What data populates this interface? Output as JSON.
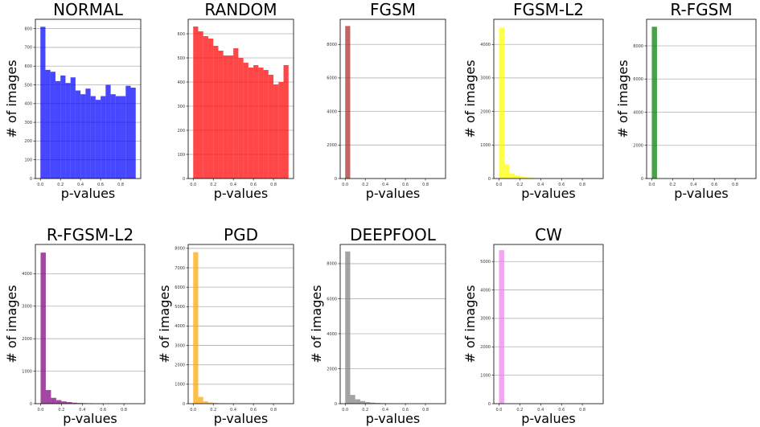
{
  "chart_data": [
    {
      "type": "bar",
      "title": "NORMAL",
      "xlabel": "p-values",
      "ylabel": "# of images",
      "color": "#0000ff",
      "bin_edges_start": 0.0,
      "bin_width": 0.05,
      "values": [
        810,
        580,
        570,
        520,
        550,
        510,
        540,
        470,
        450,
        480,
        440,
        420,
        440,
        500,
        450,
        440,
        440,
        495,
        485
      ],
      "xlim": [
        -0.05,
        1.0
      ],
      "ylim": [
        0,
        850
      ],
      "xticks": [
        0.0,
        0.2,
        0.4,
        0.6,
        0.8
      ],
      "xtick_labels": [
        "0.0",
        "0.2",
        "0.4",
        "0.6",
        "0.8"
      ],
      "yticks": [
        0,
        100,
        200,
        300,
        400,
        500,
        600,
        700,
        800
      ],
      "ytick_labels": [
        "0",
        "100",
        "200",
        "300",
        "400",
        "500",
        "600",
        "700",
        "800"
      ],
      "grid": true
    },
    {
      "type": "bar",
      "title": "RANDOM",
      "xlabel": "p-values",
      "ylabel": "",
      "color": "#ff0000",
      "bin_edges_start": 0.0,
      "bin_width": 0.05,
      "values": [
        630,
        610,
        590,
        580,
        550,
        530,
        510,
        510,
        540,
        500,
        480,
        460,
        470,
        460,
        450,
        430,
        390,
        400,
        470
      ],
      "xlim": [
        -0.05,
        1.0
      ],
      "ylim": [
        0,
        660
      ],
      "xticks": [
        0.0,
        0.2,
        0.4,
        0.6,
        0.8
      ],
      "xtick_labels": [
        "0.0",
        "0.2",
        "0.4",
        "0.6",
        "0.8"
      ],
      "yticks": [
        0,
        100,
        200,
        300,
        400,
        500,
        600
      ],
      "ytick_labels": [
        "0",
        "100",
        "200",
        "300",
        "400",
        "500",
        "600"
      ],
      "grid": true
    },
    {
      "type": "bar",
      "title": "FGSM",
      "xlabel": "p-values",
      "ylabel": "",
      "color": "#aa2a2a",
      "bin_edges_start": 0.0,
      "bin_width": 0.05,
      "values": [
        9100
      ],
      "xlim": [
        -0.05,
        1.0
      ],
      "ylim": [
        0,
        9500
      ],
      "xticks": [
        0.0,
        0.2,
        0.4,
        0.6,
        0.8
      ],
      "xtick_labels": [
        "0.0",
        "0.2",
        "0.4",
        "0.6",
        "0.8"
      ],
      "yticks": [
        0,
        2000,
        4000,
        6000,
        8000
      ],
      "ytick_labels": [
        "0",
        "2000",
        "4000",
        "6000",
        "8000"
      ],
      "grid": true
    },
    {
      "type": "bar",
      "title": "FGSM-L2",
      "xlabel": "p-values",
      "ylabel": "# of images",
      "color": "#ffff00",
      "bin_edges_start": 0.0,
      "bin_width": 0.05,
      "values": [
        4500,
        420,
        150,
        90,
        60,
        40,
        30,
        20,
        15,
        10
      ],
      "xlim": [
        -0.05,
        1.0
      ],
      "ylim": [
        0,
        4750
      ],
      "xticks": [
        0.0,
        0.2,
        0.4,
        0.6,
        0.8
      ],
      "xtick_labels": [
        "0.0",
        "0.2",
        "0.4",
        "0.6",
        "0.8"
      ],
      "yticks": [
        0,
        1000,
        2000,
        3000,
        4000
      ],
      "ytick_labels": [
        "0",
        "1000",
        "2000",
        "3000",
        "4000"
      ],
      "grid": true
    },
    {
      "type": "bar",
      "title": "R-FGSM",
      "xlabel": "p-values",
      "ylabel": "# of images",
      "color": "#008000",
      "bin_edges_start": 0.0,
      "bin_width": 0.05,
      "values": [
        9150
      ],
      "xlim": [
        -0.05,
        1.0
      ],
      "ylim": [
        0,
        9600
      ],
      "xticks": [
        0.0,
        0.2,
        0.4,
        0.6,
        0.8
      ],
      "xtick_labels": [
        "0.0",
        "0.2",
        "0.4",
        "0.6",
        "0.8"
      ],
      "yticks": [
        0,
        2000,
        4000,
        6000,
        8000
      ],
      "ytick_labels": [
        "0",
        "2000",
        "4000",
        "6000",
        "8000"
      ],
      "grid": true
    },
    {
      "type": "bar",
      "title": "R-FGSM-L2",
      "xlabel": "p-values",
      "ylabel": "# of images",
      "color": "#800080",
      "bin_edges_start": 0.0,
      "bin_width": 0.05,
      "values": [
        4650,
        420,
        180,
        110,
        70,
        50,
        30,
        20,
        15,
        10
      ],
      "xlim": [
        -0.05,
        1.0
      ],
      "ylim": [
        0,
        4900
      ],
      "xticks": [
        0.0,
        0.2,
        0.4,
        0.6,
        0.8
      ],
      "xtick_labels": [
        "0.0",
        "0.2",
        "0.4",
        "0.6",
        "0.8"
      ],
      "yticks": [
        0,
        1000,
        2000,
        3000,
        4000
      ],
      "ytick_labels": [
        "0",
        "1000",
        "2000",
        "3000",
        "4000"
      ],
      "grid": true
    },
    {
      "type": "bar",
      "title": "PGD",
      "xlabel": "p-values",
      "ylabel": "# of images",
      "color": "#ffa500",
      "bin_edges_start": 0.0,
      "bin_width": 0.05,
      "values": [
        7800,
        350,
        120,
        60,
        40,
        25,
        15,
        10
      ],
      "xlim": [
        -0.05,
        1.0
      ],
      "ylim": [
        0,
        8200
      ],
      "xticks": [
        0.0,
        0.2,
        0.4,
        0.6,
        0.8
      ],
      "xtick_labels": [
        "0.0",
        "0.2",
        "0.4",
        "0.6",
        "0.8"
      ],
      "yticks": [
        0,
        1000,
        2000,
        3000,
        4000,
        5000,
        6000,
        7000,
        8000
      ],
      "ytick_labels": [
        "0",
        "1000",
        "2000",
        "3000",
        "4000",
        "5000",
        "6000",
        "7000",
        "8000"
      ],
      "grid": true
    },
    {
      "type": "bar",
      "title": "DEEPFOOL",
      "xlabel": "p-values",
      "ylabel": "# of images",
      "color": "#808080",
      "bin_edges_start": 0.0,
      "bin_width": 0.05,
      "values": [
        8700,
        500,
        250,
        150,
        90,
        60,
        40,
        30,
        20,
        10
      ],
      "xlim": [
        -0.05,
        1.0
      ],
      "ylim": [
        0,
        9100
      ],
      "xticks": [
        0.0,
        0.2,
        0.4,
        0.6,
        0.8
      ],
      "xtick_labels": [
        "0.0",
        "0.2",
        "0.4",
        "0.6",
        "0.8"
      ],
      "yticks": [
        0,
        2000,
        4000,
        6000,
        8000
      ],
      "ytick_labels": [
        "0",
        "2000",
        "4000",
        "6000",
        "8000"
      ],
      "grid": true
    },
    {
      "type": "bar",
      "title": "CW",
      "xlabel": "p-values",
      "ylabel": "# of images",
      "color": "#ee82ee",
      "bin_edges_start": 0.0,
      "bin_width": 0.05,
      "values": [
        5400
      ],
      "xlim": [
        -0.05,
        1.0
      ],
      "ylim": [
        0,
        5600
      ],
      "xticks": [
        0.0,
        0.2,
        0.4,
        0.6,
        0.8
      ],
      "xtick_labels": [
        "0.0",
        "0.2",
        "0.4",
        "0.6",
        "0.8"
      ],
      "yticks": [
        0,
        1000,
        2000,
        3000,
        4000,
        5000
      ],
      "ytick_labels": [
        "0",
        "1000",
        "2000",
        "3000",
        "4000",
        "5000"
      ],
      "grid": true
    }
  ]
}
